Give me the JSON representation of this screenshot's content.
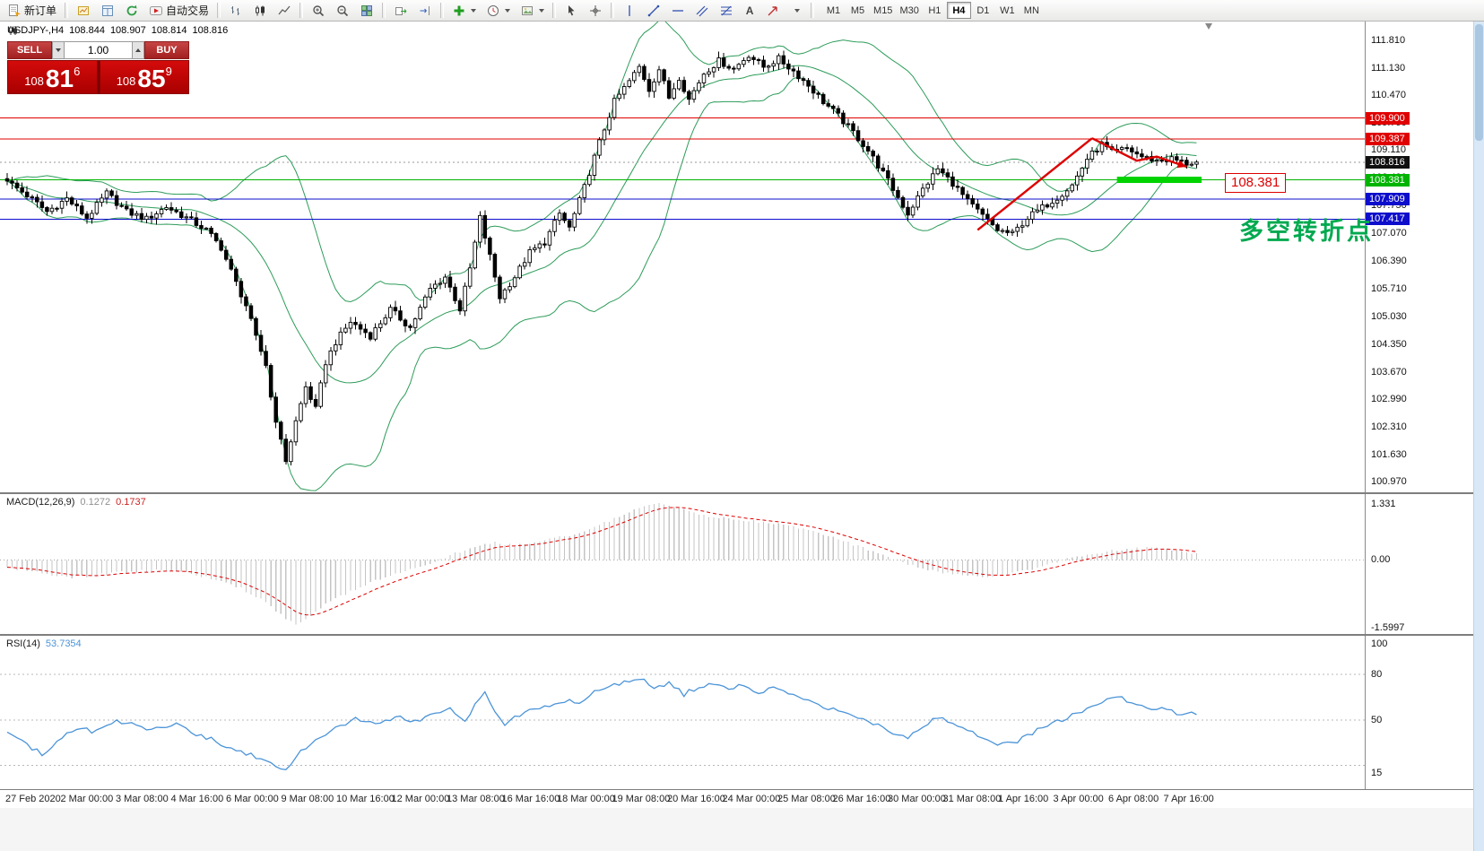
{
  "toolbar": {
    "new_order_label": "新订单",
    "autotrade_label": "自动交易",
    "text_tool_glyph": "A",
    "timeframes": [
      "M1",
      "M5",
      "M15",
      "M30",
      "H1",
      "H4",
      "D1",
      "W1",
      "MN"
    ],
    "active_timeframe": "H4"
  },
  "quote_header": {
    "symbol": "USDJPY-,H4",
    "open": "108.844",
    "high": "108.907",
    "low": "108.814",
    "close": "108.816"
  },
  "trade_panel": {
    "sell_label": "SELL",
    "buy_label": "BUY",
    "volume": "1.00",
    "sell_price": {
      "big": "108",
      "pips": "81",
      "sup": "6"
    },
    "buy_price": {
      "big": "108",
      "pips": "85",
      "sup": "9"
    }
  },
  "price_axis": {
    "labels": [
      "111.810",
      "111.130",
      "110.470",
      "109.790",
      "109.110",
      "108.430",
      "107.750",
      "107.070",
      "106.390",
      "105.710",
      "105.030",
      "104.350",
      "103.670",
      "102.990",
      "102.310",
      "101.630",
      "100.970"
    ],
    "boxes": [
      {
        "text": "109.900",
        "bg": "#e00000"
      },
      {
        "text": "109.387",
        "bg": "#e00000"
      },
      {
        "text": "108.816",
        "bg": "#101010"
      },
      {
        "text": "108.381",
        "bg": "#00b400"
      },
      {
        "text": "107.909",
        "bg": "#0d0dcc"
      },
      {
        "text": "107.417",
        "bg": "#0d0dcc"
      }
    ]
  },
  "levels": [
    {
      "price": 109.9,
      "color": "#e00000"
    },
    {
      "price": 109.387,
      "color": "#e00000"
    },
    {
      "price": 108.381,
      "color": "#00b400"
    },
    {
      "price": 107.909,
      "color": "#0d0dcc"
    },
    {
      "price": 107.417,
      "color": "#0d0dcc"
    }
  ],
  "annotations": {
    "trend_color": "#dd0000",
    "trend_up": [
      [
        195,
        107.15
      ],
      [
        218,
        109.4
      ]
    ],
    "trend_down": [
      [
        218,
        109.4
      ],
      [
        227,
        108.85
      ],
      [
        231,
        108.95
      ],
      [
        237,
        108.7
      ]
    ],
    "green_bar": {
      "from_idx": 223,
      "to_idx": 240,
      "price": 108.381,
      "color": "#00d300"
    },
    "price_tag": {
      "text": "108.381",
      "color": "#dd0000"
    },
    "cn_note": {
      "text": "多空转折点",
      "color": "#00a94f"
    }
  },
  "macd_panel": {
    "name": "MACD(12,26,9)",
    "value1": "0.1272",
    "value2": "0.1737"
  },
  "rsi_panel": {
    "name": "RSI(14)",
    "value": "53.7354"
  },
  "time_axis": [
    "27 Feb 2020",
    "2 Mar 00:00",
    "3 Mar 08:00",
    "4 Mar 16:00",
    "6 Mar 00:00",
    "9 Mar 08:00",
    "10 Mar 16:00",
    "12 Mar 00:00",
    "13 Mar 08:00",
    "16 Mar 16:00",
    "18 Mar 00:00",
    "19 Mar 08:00",
    "20 Mar 16:00",
    "24 Mar 00:00",
    "25 Mar 08:00",
    "26 Mar 16:00",
    "30 Mar 00:00",
    "31 Mar 08:00",
    "1 Apr 16:00",
    "3 Apr 00:00",
    "6 Apr 08:00",
    "7 Apr 16:00"
  ],
  "chart_data": {
    "type": "candlestick",
    "symbol": "USDJPY",
    "timeframe": "H4",
    "num_candles": 240,
    "price_range": [
      100.8,
      112.2
    ],
    "current_price": 108.816,
    "candle_colors": {
      "up": "#ffffff",
      "down": "#000000"
    },
    "close_anchors": [
      [
        0,
        108.35
      ],
      [
        4,
        108.0
      ],
      [
        8,
        107.6
      ],
      [
        12,
        107.92
      ],
      [
        16,
        107.45
      ],
      [
        20,
        108.05
      ],
      [
        24,
        107.6
      ],
      [
        28,
        107.42
      ],
      [
        32,
        107.72
      ],
      [
        36,
        107.45
      ],
      [
        40,
        107.15
      ],
      [
        43,
        106.72
      ],
      [
        46,
        105.85
      ],
      [
        48,
        105.3
      ],
      [
        50,
        104.5
      ],
      [
        52,
        103.85
      ],
      [
        53,
        103.05
      ],
      [
        55,
        101.95
      ],
      [
        56,
        101.5
      ],
      [
        58,
        102.45
      ],
      [
        60,
        103.3
      ],
      [
        62,
        102.75
      ],
      [
        64,
        103.9
      ],
      [
        66,
        104.4
      ],
      [
        69,
        104.9
      ],
      [
        73,
        104.55
      ],
      [
        77,
        105.2
      ],
      [
        81,
        104.75
      ],
      [
        85,
        105.7
      ],
      [
        88,
        106.0
      ],
      [
        91,
        105.2
      ],
      [
        93,
        106.2
      ],
      [
        95,
        107.45
      ],
      [
        97,
        106.5
      ],
      [
        99,
        105.5
      ],
      [
        102,
        106.0
      ],
      [
        105,
        106.6
      ],
      [
        108,
        106.85
      ],
      [
        111,
        107.55
      ],
      [
        113,
        107.2
      ],
      [
        116,
        108.2
      ],
      [
        119,
        109.3
      ],
      [
        122,
        110.3
      ],
      [
        125,
        110.8
      ],
      [
        127,
        111.15
      ],
      [
        129,
        110.6
      ],
      [
        131,
        111.1
      ],
      [
        133,
        110.4
      ],
      [
        135,
        110.9
      ],
      [
        137,
        110.35
      ],
      [
        140,
        111.0
      ],
      [
        143,
        111.3
      ],
      [
        146,
        111.1
      ],
      [
        149,
        111.45
      ],
      [
        152,
        111.15
      ],
      [
        155,
        111.35
      ],
      [
        158,
        111.05
      ],
      [
        161,
        110.7
      ],
      [
        164,
        110.3
      ],
      [
        167,
        109.95
      ],
      [
        170,
        109.55
      ],
      [
        173,
        109.1
      ],
      [
        176,
        108.55
      ],
      [
        179,
        107.95
      ],
      [
        181,
        107.55
      ],
      [
        184,
        108.15
      ],
      [
        187,
        108.65
      ],
      [
        190,
        108.3
      ],
      [
        193,
        107.85
      ],
      [
        196,
        107.5
      ],
      [
        199,
        107.15
      ],
      [
        202,
        107.05
      ],
      [
        205,
        107.45
      ],
      [
        208,
        107.7
      ],
      [
        211,
        107.95
      ],
      [
        214,
        108.25
      ],
      [
        217,
        108.9
      ],
      [
        220,
        109.25
      ],
      [
        222,
        109.05
      ],
      [
        225,
        109.15
      ],
      [
        228,
        108.95
      ],
      [
        231,
        108.85
      ],
      [
        234,
        108.9
      ],
      [
        237,
        108.78
      ],
      [
        239,
        108.82
      ]
    ],
    "bollinger": {
      "period": 20,
      "deviation": 2,
      "color": "#2d9c5a"
    },
    "macd": {
      "range": [
        -1.65,
        1.45
      ],
      "histogram_color": "#c4c4c4",
      "signal_color": "#dd0000",
      "axis": [
        {
          "text": "1.331",
          "v": 1.331
        },
        {
          "text": "0.00",
          "v": 0
        },
        {
          "text": "-1.5997",
          "v": -1.5997
        }
      ],
      "anchors": [
        [
          0,
          -0.18
        ],
        [
          6,
          -0.3
        ],
        [
          12,
          -0.42
        ],
        [
          18,
          -0.36
        ],
        [
          24,
          -0.28
        ],
        [
          30,
          -0.25
        ],
        [
          36,
          -0.32
        ],
        [
          42,
          -0.45
        ],
        [
          47,
          -0.68
        ],
        [
          52,
          -1.0
        ],
        [
          55,
          -1.3
        ],
        [
          58,
          -1.55
        ],
        [
          61,
          -1.35
        ],
        [
          64,
          -1.05
        ],
        [
          68,
          -0.8
        ],
        [
          72,
          -0.58
        ],
        [
          76,
          -0.42
        ],
        [
          80,
          -0.26
        ],
        [
          84,
          -0.12
        ],
        [
          88,
          0.06
        ],
        [
          92,
          0.24
        ],
        [
          95,
          0.36
        ],
        [
          98,
          0.4
        ],
        [
          101,
          0.35
        ],
        [
          104,
          0.38
        ],
        [
          107,
          0.44
        ],
        [
          110,
          0.5
        ],
        [
          113,
          0.58
        ],
        [
          116,
          0.68
        ],
        [
          119,
          0.82
        ],
        [
          122,
          0.98
        ],
        [
          125,
          1.14
        ],
        [
          128,
          1.26
        ],
        [
          131,
          1.33
        ],
        [
          134,
          1.26
        ],
        [
          137,
          1.15
        ],
        [
          140,
          1.06
        ],
        [
          143,
          1.0
        ],
        [
          146,
          0.96
        ],
        [
          149,
          0.93
        ],
        [
          152,
          0.88
        ],
        [
          155,
          0.84
        ],
        [
          158,
          0.78
        ],
        [
          161,
          0.7
        ],
        [
          164,
          0.6
        ],
        [
          167,
          0.48
        ],
        [
          170,
          0.36
        ],
        [
          173,
          0.24
        ],
        [
          176,
          0.1
        ],
        [
          179,
          -0.04
        ],
        [
          182,
          -0.15
        ],
        [
          185,
          -0.24
        ],
        [
          188,
          -0.3
        ],
        [
          191,
          -0.34
        ],
        [
          194,
          -0.38
        ],
        [
          197,
          -0.4
        ],
        [
          200,
          -0.37
        ],
        [
          203,
          -0.3
        ],
        [
          206,
          -0.22
        ],
        [
          209,
          -0.12
        ],
        [
          212,
          -0.02
        ],
        [
          215,
          0.06
        ],
        [
          218,
          0.13
        ],
        [
          221,
          0.19
        ],
        [
          224,
          0.24
        ],
        [
          227,
          0.27
        ],
        [
          230,
          0.28
        ],
        [
          233,
          0.24
        ],
        [
          236,
          0.18
        ],
        [
          239,
          0.13
        ]
      ]
    },
    "rsi": {
      "range": [
        8,
        102
      ],
      "color": "#4b94d8",
      "levels": [
        80,
        50,
        20
      ],
      "axis": [
        {
          "text": "100",
          "v": 100
        },
        {
          "text": "80",
          "v": 80
        },
        {
          "text": "50",
          "v": 50
        },
        {
          "text": "15",
          "v": 15
        }
      ],
      "anchors": [
        [
          0,
          42
        ],
        [
          4,
          34
        ],
        [
          7,
          27
        ],
        [
          10,
          36
        ],
        [
          14,
          45
        ],
        [
          18,
          42
        ],
        [
          22,
          50
        ],
        [
          26,
          46
        ],
        [
          30,
          44
        ],
        [
          34,
          47
        ],
        [
          38,
          41
        ],
        [
          42,
          36
        ],
        [
          46,
          30
        ],
        [
          50,
          26
        ],
        [
          54,
          20
        ],
        [
          56,
          17
        ],
        [
          58,
          26
        ],
        [
          61,
          34
        ],
        [
          64,
          40
        ],
        [
          67,
          46
        ],
        [
          70,
          51
        ],
        [
          74,
          47
        ],
        [
          78,
          52
        ],
        [
          82,
          49
        ],
        [
          86,
          55
        ],
        [
          89,
          58
        ],
        [
          92,
          50
        ],
        [
          94,
          60
        ],
        [
          96,
          67
        ],
        [
          98,
          56
        ],
        [
          100,
          48
        ],
        [
          103,
          53
        ],
        [
          106,
          57
        ],
        [
          109,
          60
        ],
        [
          112,
          63
        ],
        [
          115,
          60
        ],
        [
          118,
          68
        ],
        [
          121,
          72
        ],
        [
          124,
          75
        ],
        [
          127,
          78
        ],
        [
          130,
          70
        ],
        [
          133,
          74
        ],
        [
          136,
          67
        ],
        [
          139,
          72
        ],
        [
          142,
          74
        ],
        [
          145,
          70
        ],
        [
          148,
          73
        ],
        [
          151,
          69
        ],
        [
          154,
          71
        ],
        [
          157,
          67
        ],
        [
          160,
          63
        ],
        [
          163,
          60
        ],
        [
          166,
          57
        ],
        [
          169,
          54
        ],
        [
          172,
          50
        ],
        [
          175,
          46
        ],
        [
          178,
          41
        ],
        [
          181,
          38
        ],
        [
          184,
          46
        ],
        [
          187,
          52
        ],
        [
          190,
          47
        ],
        [
          193,
          43
        ],
        [
          196,
          39
        ],
        [
          199,
          35
        ],
        [
          202,
          34
        ],
        [
          205,
          40
        ],
        [
          208,
          45
        ],
        [
          211,
          49
        ],
        [
          214,
          53
        ],
        [
          217,
          57
        ],
        [
          220,
          61
        ],
        [
          223,
          66
        ],
        [
          226,
          62
        ],
        [
          229,
          58
        ],
        [
          232,
          57
        ],
        [
          235,
          55
        ],
        [
          239,
          54
        ]
      ]
    }
  }
}
